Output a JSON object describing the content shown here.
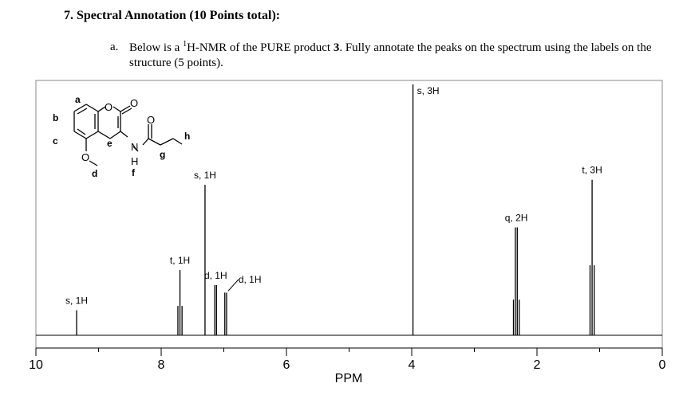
{
  "question": {
    "number_title": "7.   Spectral Annotation (10 Points total):",
    "part_label": "a.",
    "text_before_sup": "Below is a ",
    "sup": "1",
    "text_after_sup": "H-NMR of the PURE product ",
    "compound_number": "3",
    "text_after_compound": ".  Fully annotate the peaks on the spectrum using the labels on the structure (5 points)."
  },
  "structure": {
    "labels": [
      "a",
      "b",
      "c",
      "d",
      "e",
      "f",
      "g",
      "h"
    ],
    "atoms": [
      "O",
      "O",
      "O",
      "N",
      "H",
      "O"
    ]
  },
  "chart_data": {
    "type": "line",
    "xlabel": "PPM",
    "xlim": [
      10,
      0
    ],
    "x_reversed": true,
    "ticks": [
      10,
      8,
      6,
      4,
      2,
      0
    ],
    "peaks": [
      {
        "ppm": 9.35,
        "height": 0.1,
        "lines": 1,
        "label": "s, 1H"
      },
      {
        "ppm": 7.7,
        "height": 0.26,
        "lines": 3,
        "label": "t, 1H"
      },
      {
        "ppm": 7.3,
        "height": 0.6,
        "lines": 1,
        "label": "s, 1H"
      },
      {
        "ppm": 7.13,
        "height": 0.2,
        "lines": 2,
        "label": "d, 1H"
      },
      {
        "ppm": 6.97,
        "height": 0.17,
        "lines": 2,
        "label": "d, 1H"
      },
      {
        "ppm": 3.98,
        "height": 1.0,
        "lines": 1,
        "label": "s, 3H"
      },
      {
        "ppm": 2.33,
        "height": 0.43,
        "lines": 4,
        "label": "q, 2H"
      },
      {
        "ppm": 1.12,
        "height": 0.62,
        "lines": 3,
        "label": "t, 3H"
      }
    ]
  }
}
